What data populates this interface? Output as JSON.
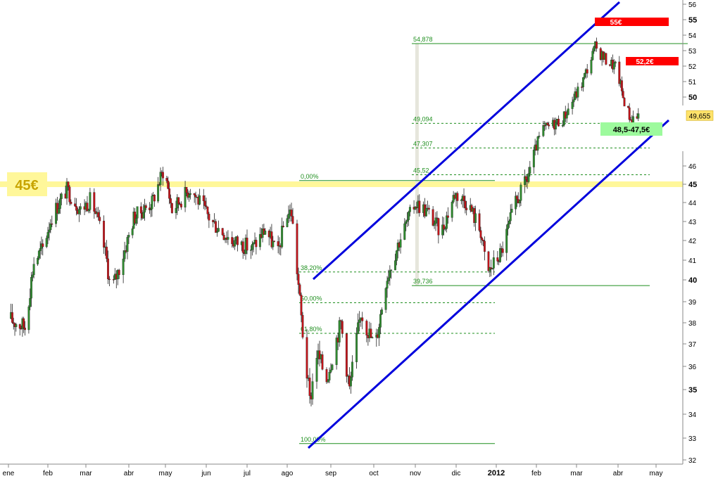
{
  "chart_data": {
    "type": "candlestick",
    "price_axis": {
      "ticks": [
        {
          "value": 32,
          "label": "32",
          "bold": false
        },
        {
          "value": 33,
          "label": "33",
          "bold": false
        },
        {
          "value": 34,
          "label": "34",
          "bold": false
        },
        {
          "value": 35,
          "label": "35",
          "bold": true
        },
        {
          "value": 36,
          "label": "36",
          "bold": false
        },
        {
          "value": 37,
          "label": "37",
          "bold": false
        },
        {
          "value": 38,
          "label": "38",
          "bold": false
        },
        {
          "value": 39,
          "label": "39",
          "bold": false
        },
        {
          "value": 40,
          "label": "40",
          "bold": true
        },
        {
          "value": 41,
          "label": "41",
          "bold": false
        },
        {
          "value": 42,
          "label": "42",
          "bold": false
        },
        {
          "value": 43,
          "label": "43",
          "bold": false
        },
        {
          "value": 44,
          "label": "44",
          "bold": false
        },
        {
          "value": 45,
          "label": "45",
          "bold": true
        },
        {
          "value": 46,
          "label": "46",
          "bold": false
        },
        {
          "value": 50,
          "label": "50",
          "bold": true
        },
        {
          "value": 51,
          "label": "51",
          "bold": false
        },
        {
          "value": 52,
          "label": "52",
          "bold": false
        },
        {
          "value": 53,
          "label": "53",
          "bold": false
        },
        {
          "value": 54,
          "label": "54",
          "bold": false
        },
        {
          "value": 55,
          "label": "55",
          "bold": true
        },
        {
          "value": 56,
          "label": "56",
          "bold": false
        }
      ],
      "last_price": "49,655",
      "last_price_value": 49.655
    },
    "time_axis": {
      "ticks": [
        {
          "label": "ene",
          "date": "2011-01-01",
          "bold": false
        },
        {
          "label": "feb",
          "date": "2011-02-01",
          "bold": false
        },
        {
          "label": "mar",
          "date": "2011-03-01",
          "bold": false
        },
        {
          "label": "abr",
          "date": "2011-04-01",
          "bold": false
        },
        {
          "label": "may",
          "date": "2011-05-01",
          "bold": false
        },
        {
          "label": "jun",
          "date": "2011-06-01",
          "bold": false
        },
        {
          "label": "jul",
          "date": "2011-07-01",
          "bold": false
        },
        {
          "label": "ago",
          "date": "2011-08-01",
          "bold": false
        },
        {
          "label": "sep",
          "date": "2011-09-01",
          "bold": false
        },
        {
          "label": "oct",
          "date": "2011-10-01",
          "bold": false
        },
        {
          "label": "nov",
          "date": "2011-11-01",
          "bold": false
        },
        {
          "label": "dic",
          "date": "2011-12-01",
          "bold": false
        },
        {
          "label": "2012",
          "date": "2012-01-01",
          "bold": true
        },
        {
          "label": "feb",
          "date": "2012-02-01",
          "bold": false
        },
        {
          "label": "mar",
          "date": "2012-03-01",
          "bold": false
        },
        {
          "label": "abr",
          "date": "2012-04-01",
          "bold": false
        },
        {
          "label": "may",
          "date": "2012-05-01",
          "bold": false
        }
      ]
    },
    "price_path": [
      [
        "2011-01-01",
        38.2
      ],
      [
        "2011-01-14",
        37.8
      ],
      [
        "2011-01-21",
        40.9
      ],
      [
        "2011-01-28",
        41.6
      ],
      [
        "2011-02-04",
        43.3
      ],
      [
        "2011-02-15",
        44.7
      ],
      [
        "2011-02-25",
        43.6
      ],
      [
        "2011-03-05",
        44.2
      ],
      [
        "2011-03-12",
        42.4
      ],
      [
        "2011-03-16",
        41.0
      ],
      [
        "2011-03-19",
        39.4
      ],
      [
        "2011-03-26",
        40.8
      ],
      [
        "2011-04-05",
        43.2
      ],
      [
        "2011-04-20",
        44.0
      ],
      [
        "2011-04-30",
        45.9
      ],
      [
        "2011-05-06",
        43.6
      ],
      [
        "2011-05-20",
        44.8
      ],
      [
        "2011-06-05",
        43.0
      ],
      [
        "2011-06-20",
        42.0
      ],
      [
        "2011-07-05",
        41.6
      ],
      [
        "2011-07-15",
        42.6
      ],
      [
        "2011-07-25",
        41.3
      ],
      [
        "2011-07-31",
        43.4
      ],
      [
        "2011-08-04",
        43.5
      ],
      [
        "2011-08-08",
        40.5
      ],
      [
        "2011-08-12",
        37.5
      ],
      [
        "2011-08-17",
        34.5
      ],
      [
        "2011-08-22",
        36.6
      ],
      [
        "2011-08-29",
        35.5
      ],
      [
        "2011-09-08",
        38.0
      ],
      [
        "2011-09-14",
        35.0
      ],
      [
        "2011-09-22",
        38.5
      ],
      [
        "2011-10-02",
        36.8
      ],
      [
        "2011-10-10",
        40.0
      ],
      [
        "2011-10-20",
        42.0
      ],
      [
        "2011-11-01",
        44.0
      ],
      [
        "2011-11-10",
        43.5
      ],
      [
        "2011-11-20",
        42.4
      ],
      [
        "2011-11-30",
        44.5
      ],
      [
        "2011-12-10",
        44.0
      ],
      [
        "2011-12-20",
        42.5
      ],
      [
        "2011-12-25",
        40.3
      ],
      [
        "2012-01-05",
        41.4
      ],
      [
        "2012-01-15",
        43.8
      ],
      [
        "2012-01-25",
        45.3
      ],
      [
        "2012-02-05",
        48.6
      ],
      [
        "2012-02-20",
        49.4
      ],
      [
        "2012-03-05",
        52.0
      ],
      [
        "2012-03-15",
        54.6
      ],
      [
        "2012-03-22",
        53.8
      ],
      [
        "2012-03-31",
        53.1
      ],
      [
        "2012-04-05",
        51.0
      ],
      [
        "2012-04-11",
        49.4
      ],
      [
        "2012-04-17",
        49.655
      ]
    ],
    "fibonacci_retracement": {
      "levels": [
        {
          "label": "0,00%",
          "value": 45.2
        },
        {
          "label": "38,20%",
          "value": 40.4
        },
        {
          "label": "50,00%",
          "value": 38.95
        },
        {
          "label": "61,80%",
          "value": 37.5
        },
        {
          "label": "100,00%",
          "value": 32.75
        }
      ]
    },
    "fibonacci_extension": {
      "levels": [
        {
          "label": "54,878",
          "value": 54.878
        },
        {
          "label": "49,094",
          "value": 49.094
        },
        {
          "label": "47,307",
          "value": 47.307
        },
        {
          "label": "45,52",
          "value": 45.52
        },
        {
          "label": "39,736",
          "value": 39.736
        }
      ]
    },
    "annotations": {
      "resistance_45": {
        "label": "45€",
        "value": 45
      },
      "target_55": {
        "label": "55€"
      },
      "resistance_52": {
        "label": "52,2€"
      },
      "support_zone": {
        "label": "48,5-47,5€"
      }
    },
    "colors": {
      "channel": "#0000dd",
      "candle_up": "#2f8a2f",
      "candle_down": "#c0141a",
      "fib_line": "#1f8f1f",
      "highlight_band": "#fff79a",
      "red_marker": "#ff0000",
      "green_marker": "#9dfa9d",
      "last_price_bg": "#ffe36b"
    },
    "grid": false
  }
}
